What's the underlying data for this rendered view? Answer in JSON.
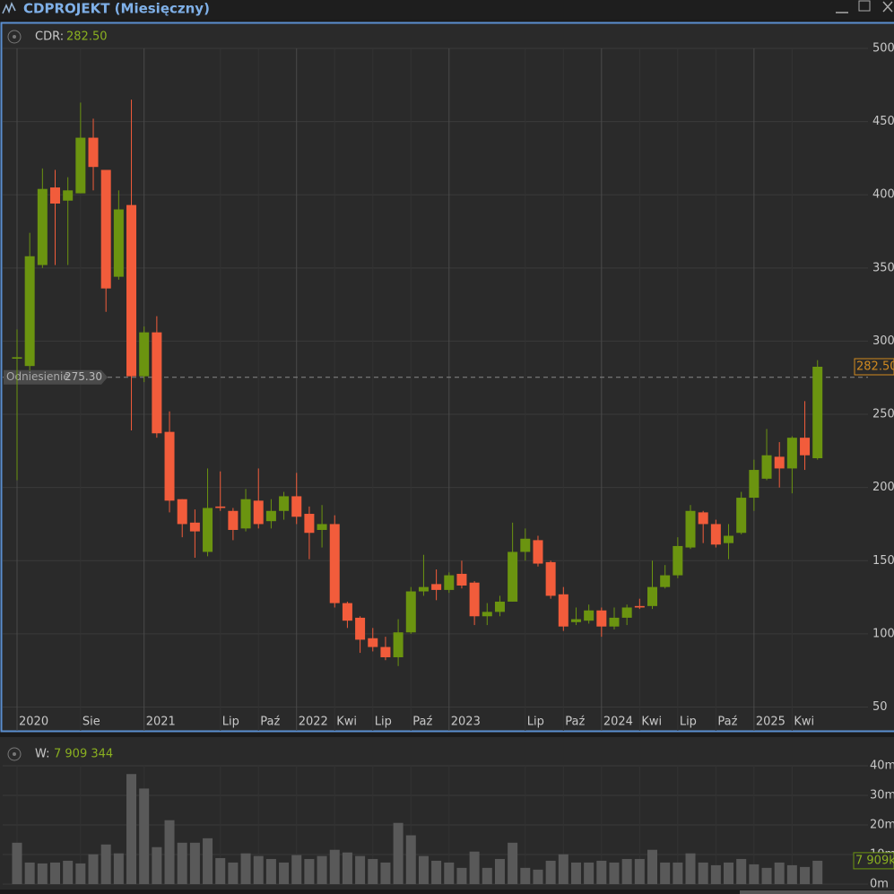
{
  "header": {
    "window_title": "CDPROJEKT (Miesięczny)",
    "symbol_label": "CDR:",
    "symbol_value": "282.50",
    "volume_label": "W:",
    "volume_value": "7 909 344"
  },
  "chart_data": [
    {
      "type": "candlestick",
      "categories": [
        "2020",
        null,
        null,
        null,
        null,
        "Sie",
        null,
        null,
        null,
        null,
        "2021",
        null,
        null,
        null,
        null,
        null,
        "Lip",
        null,
        null,
        "Paź",
        null,
        null,
        "2022",
        null,
        null,
        "Kwi",
        null,
        null,
        "Lip",
        null,
        null,
        "Paź",
        null,
        null,
        "2023",
        null,
        null,
        null,
        null,
        null,
        "Lip",
        null,
        null,
        "Paź",
        null,
        null,
        "2024",
        null,
        null,
        "Kwi",
        null,
        null,
        "Lip",
        null,
        null,
        "Paź",
        null,
        null,
        "2025",
        null,
        null,
        "Kwi",
        null,
        null
      ],
      "open": [
        288,
        283,
        352,
        405,
        396,
        401,
        439,
        417,
        344,
        393,
        276,
        306,
        238,
        192,
        176,
        156,
        187,
        184,
        172,
        191,
        177,
        184,
        194,
        182,
        171,
        175,
        121,
        111,
        97,
        91,
        84,
        101,
        129,
        134,
        130,
        141,
        135,
        112,
        115,
        122,
        156,
        164,
        149,
        127,
        108,
        109,
        116,
        105,
        111,
        119,
        119,
        132,
        140,
        159,
        183,
        175,
        162,
        169,
        193,
        206,
        221,
        213,
        234,
        220
      ],
      "high": [
        308,
        374,
        418,
        417,
        412,
        463,
        452,
        417,
        403,
        465,
        310,
        317,
        252,
        192,
        185,
        213,
        211,
        186,
        199,
        213,
        192,
        197,
        210,
        187,
        188,
        181,
        122,
        112,
        104,
        98,
        110,
        132,
        154,
        144,
        142,
        150,
        136,
        121,
        126,
        176,
        172,
        167,
        150,
        132,
        118,
        120,
        118,
        118,
        120,
        124,
        150,
        147,
        166,
        188,
        184,
        178,
        175,
        197,
        219,
        240,
        231,
        235,
        259,
        287
      ],
      "low": [
        205,
        280,
        350,
        352,
        352,
        401,
        403,
        320,
        342,
        239,
        272,
        234,
        183,
        166,
        152,
        153,
        184,
        164,
        170,
        172,
        172,
        178,
        175,
        151,
        159,
        118,
        104,
        87,
        88,
        82,
        78,
        100,
        126,
        123,
        128,
        131,
        106,
        106,
        112,
        122,
        150,
        146,
        124,
        102,
        106,
        107,
        98,
        103,
        106,
        117,
        117,
        131,
        138,
        158,
        162,
        159,
        151,
        168,
        184,
        205,
        200,
        196,
        212,
        219
      ],
      "close": [
        289,
        358,
        404,
        394,
        403,
        439,
        419,
        336,
        390,
        276,
        306,
        237,
        191,
        175,
        170,
        186,
        186,
        171,
        192,
        175,
        184,
        194,
        180,
        169,
        175,
        121,
        109,
        96,
        91,
        84,
        101,
        129,
        132,
        130,
        140,
        133,
        112,
        115,
        122,
        156,
        165,
        148,
        126,
        105,
        110,
        116,
        105,
        111,
        118,
        118,
        132,
        140,
        160,
        184,
        175,
        161,
        167,
        193,
        212,
        222,
        213,
        234,
        222,
        282.5
      ],
      "up_color": "#6b9410",
      "down_color": "#f25c3b",
      "ylim": [
        46,
        500
      ],
      "yticks": [
        50,
        100,
        150,
        200,
        250,
        300,
        350,
        400,
        450,
        500
      ],
      "grid": true,
      "reference": {
        "label": "Odniesienie",
        "value": 275.3,
        "value_label": "275.30"
      }
    },
    {
      "type": "bar",
      "values": [
        14.0,
        7.3,
        7.0,
        7.3,
        7.9,
        7.0,
        10.1,
        13.4,
        10.4,
        37.2,
        32.3,
        12.5,
        21.6,
        14.0,
        14.0,
        15.5,
        8.8,
        7.3,
        10.4,
        9.5,
        8.5,
        7.3,
        9.8,
        8.5,
        9.5,
        11.6,
        10.7,
        9.5,
        8.5,
        7.3,
        20.7,
        16.5,
        9.5,
        7.9,
        7.3,
        5.5,
        11.0,
        5.5,
        8.5,
        14.0,
        5.5,
        4.9,
        7.9,
        10.1,
        7.3,
        7.3,
        7.9,
        7.3,
        8.5,
        8.5,
        11.6,
        7.3,
        7.3,
        10.4,
        7.3,
        6.4,
        7.3,
        8.5,
        6.7,
        5.5,
        7.3,
        6.4,
        5.8,
        7.909344
      ],
      "color": "#595959",
      "ylim": [
        0,
        40
      ],
      "yticks": [
        {
          "value": 0,
          "label": "0m"
        },
        {
          "value": 10,
          "label": "10m"
        },
        {
          "value": 20,
          "label": "20m"
        },
        {
          "value": 30,
          "label": "30m"
        },
        {
          "value": 40,
          "label": "40m"
        }
      ],
      "last_value_label": "7 909k"
    }
  ]
}
